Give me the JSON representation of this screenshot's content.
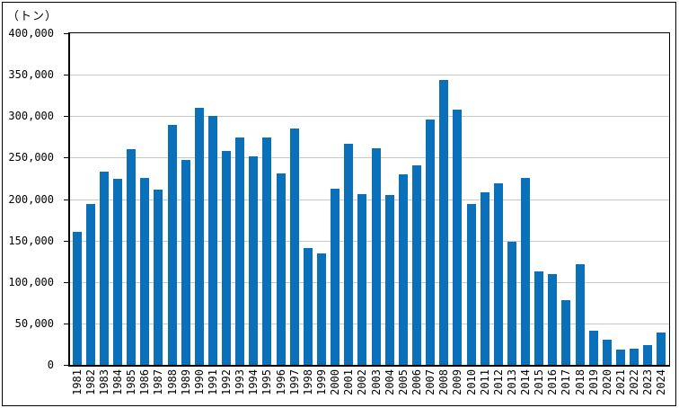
{
  "figure": {
    "unit_label": "（トン）"
  },
  "chart_data": {
    "type": "bar",
    "title": "",
    "xlabel": "",
    "ylabel": "（トン）",
    "unit_label": "（トン）",
    "ylim": [
      0,
      400000
    ],
    "ytick_interval": 50000,
    "ytick_labels_top_to_bottom": [
      "400,000",
      "350,000",
      "300,000",
      "250,000",
      "200,000",
      "150,000",
      "100,000",
      "50,000",
      "0"
    ],
    "grid": true,
    "legend": false,
    "categories": [
      "1981",
      "1982",
      "1983",
      "1984",
      "1985",
      "1986",
      "1987",
      "1988",
      "1989",
      "1990",
      "1991",
      "1992",
      "1993",
      "1994",
      "1995",
      "1996",
      "1997",
      "1998",
      "1999",
      "2000",
      "2001",
      "2002",
      "2003",
      "2004",
      "2005",
      "2006",
      "2007",
      "2008",
      "2009",
      "2010",
      "2011",
      "2012",
      "2013",
      "2014",
      "2015",
      "2016",
      "2017",
      "2018",
      "2019",
      "2020",
      "2021",
      "2022",
      "2023",
      "2024"
    ],
    "values": [
      160000,
      194000,
      233000,
      224000,
      260000,
      226000,
      211000,
      289000,
      247000,
      310000,
      300000,
      258000,
      274000,
      251000,
      274000,
      231000,
      285000,
      141000,
      134000,
      212000,
      267000,
      206000,
      261000,
      205000,
      230000,
      241000,
      296000,
      344000,
      308000,
      194000,
      208000,
      219000,
      148000,
      225000,
      113000,
      110000,
      78000,
      121000,
      41000,
      30000,
      18000,
      19000,
      24000,
      39000
    ],
    "colors": {
      "bar": "#0a70ba",
      "grid": "#c9c9c9",
      "axis": "#000000",
      "background": "#ffffff"
    }
  }
}
